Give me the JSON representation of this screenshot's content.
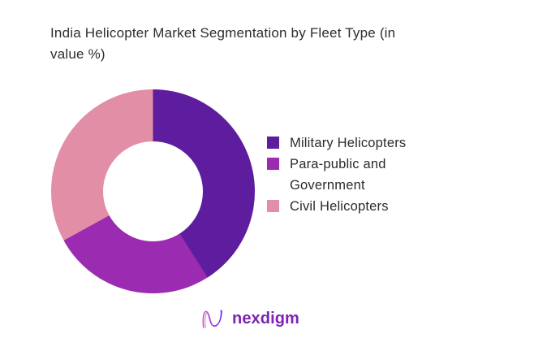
{
  "title": "India Helicopter Market Segmentation by Fleet Type (in\nvalue %)",
  "chart_data": {
    "type": "pie",
    "subtype": "donut",
    "title": "India Helicopter Market Segmentation by Fleet Type (in value %)",
    "unit": "value %",
    "categories": [
      "Military Helicopters",
      "Para-public and Government",
      "Civil Helicopters"
    ],
    "values": [
      41,
      26,
      33
    ],
    "colors": [
      "#5e1c9e",
      "#9b2bb0",
      "#e18ea6"
    ],
    "start_angle_deg": 0,
    "direction": "clockwise",
    "inner_radius_ratio": 0.49,
    "legend_position": "right",
    "data_labels": false
  },
  "legend": {
    "items": [
      {
        "label": "Military Helicopters",
        "color": "#5e1c9e"
      },
      {
        "label": "Para-public and Government",
        "color": "#9b2bb0"
      },
      {
        "label": "Civil Helicopters",
        "color": "#e18ea6"
      }
    ]
  },
  "footer": {
    "brand": "nexdigm",
    "brand_color": "#7d22b5",
    "logo_icon": "nexdigm-n-wave-icon"
  }
}
